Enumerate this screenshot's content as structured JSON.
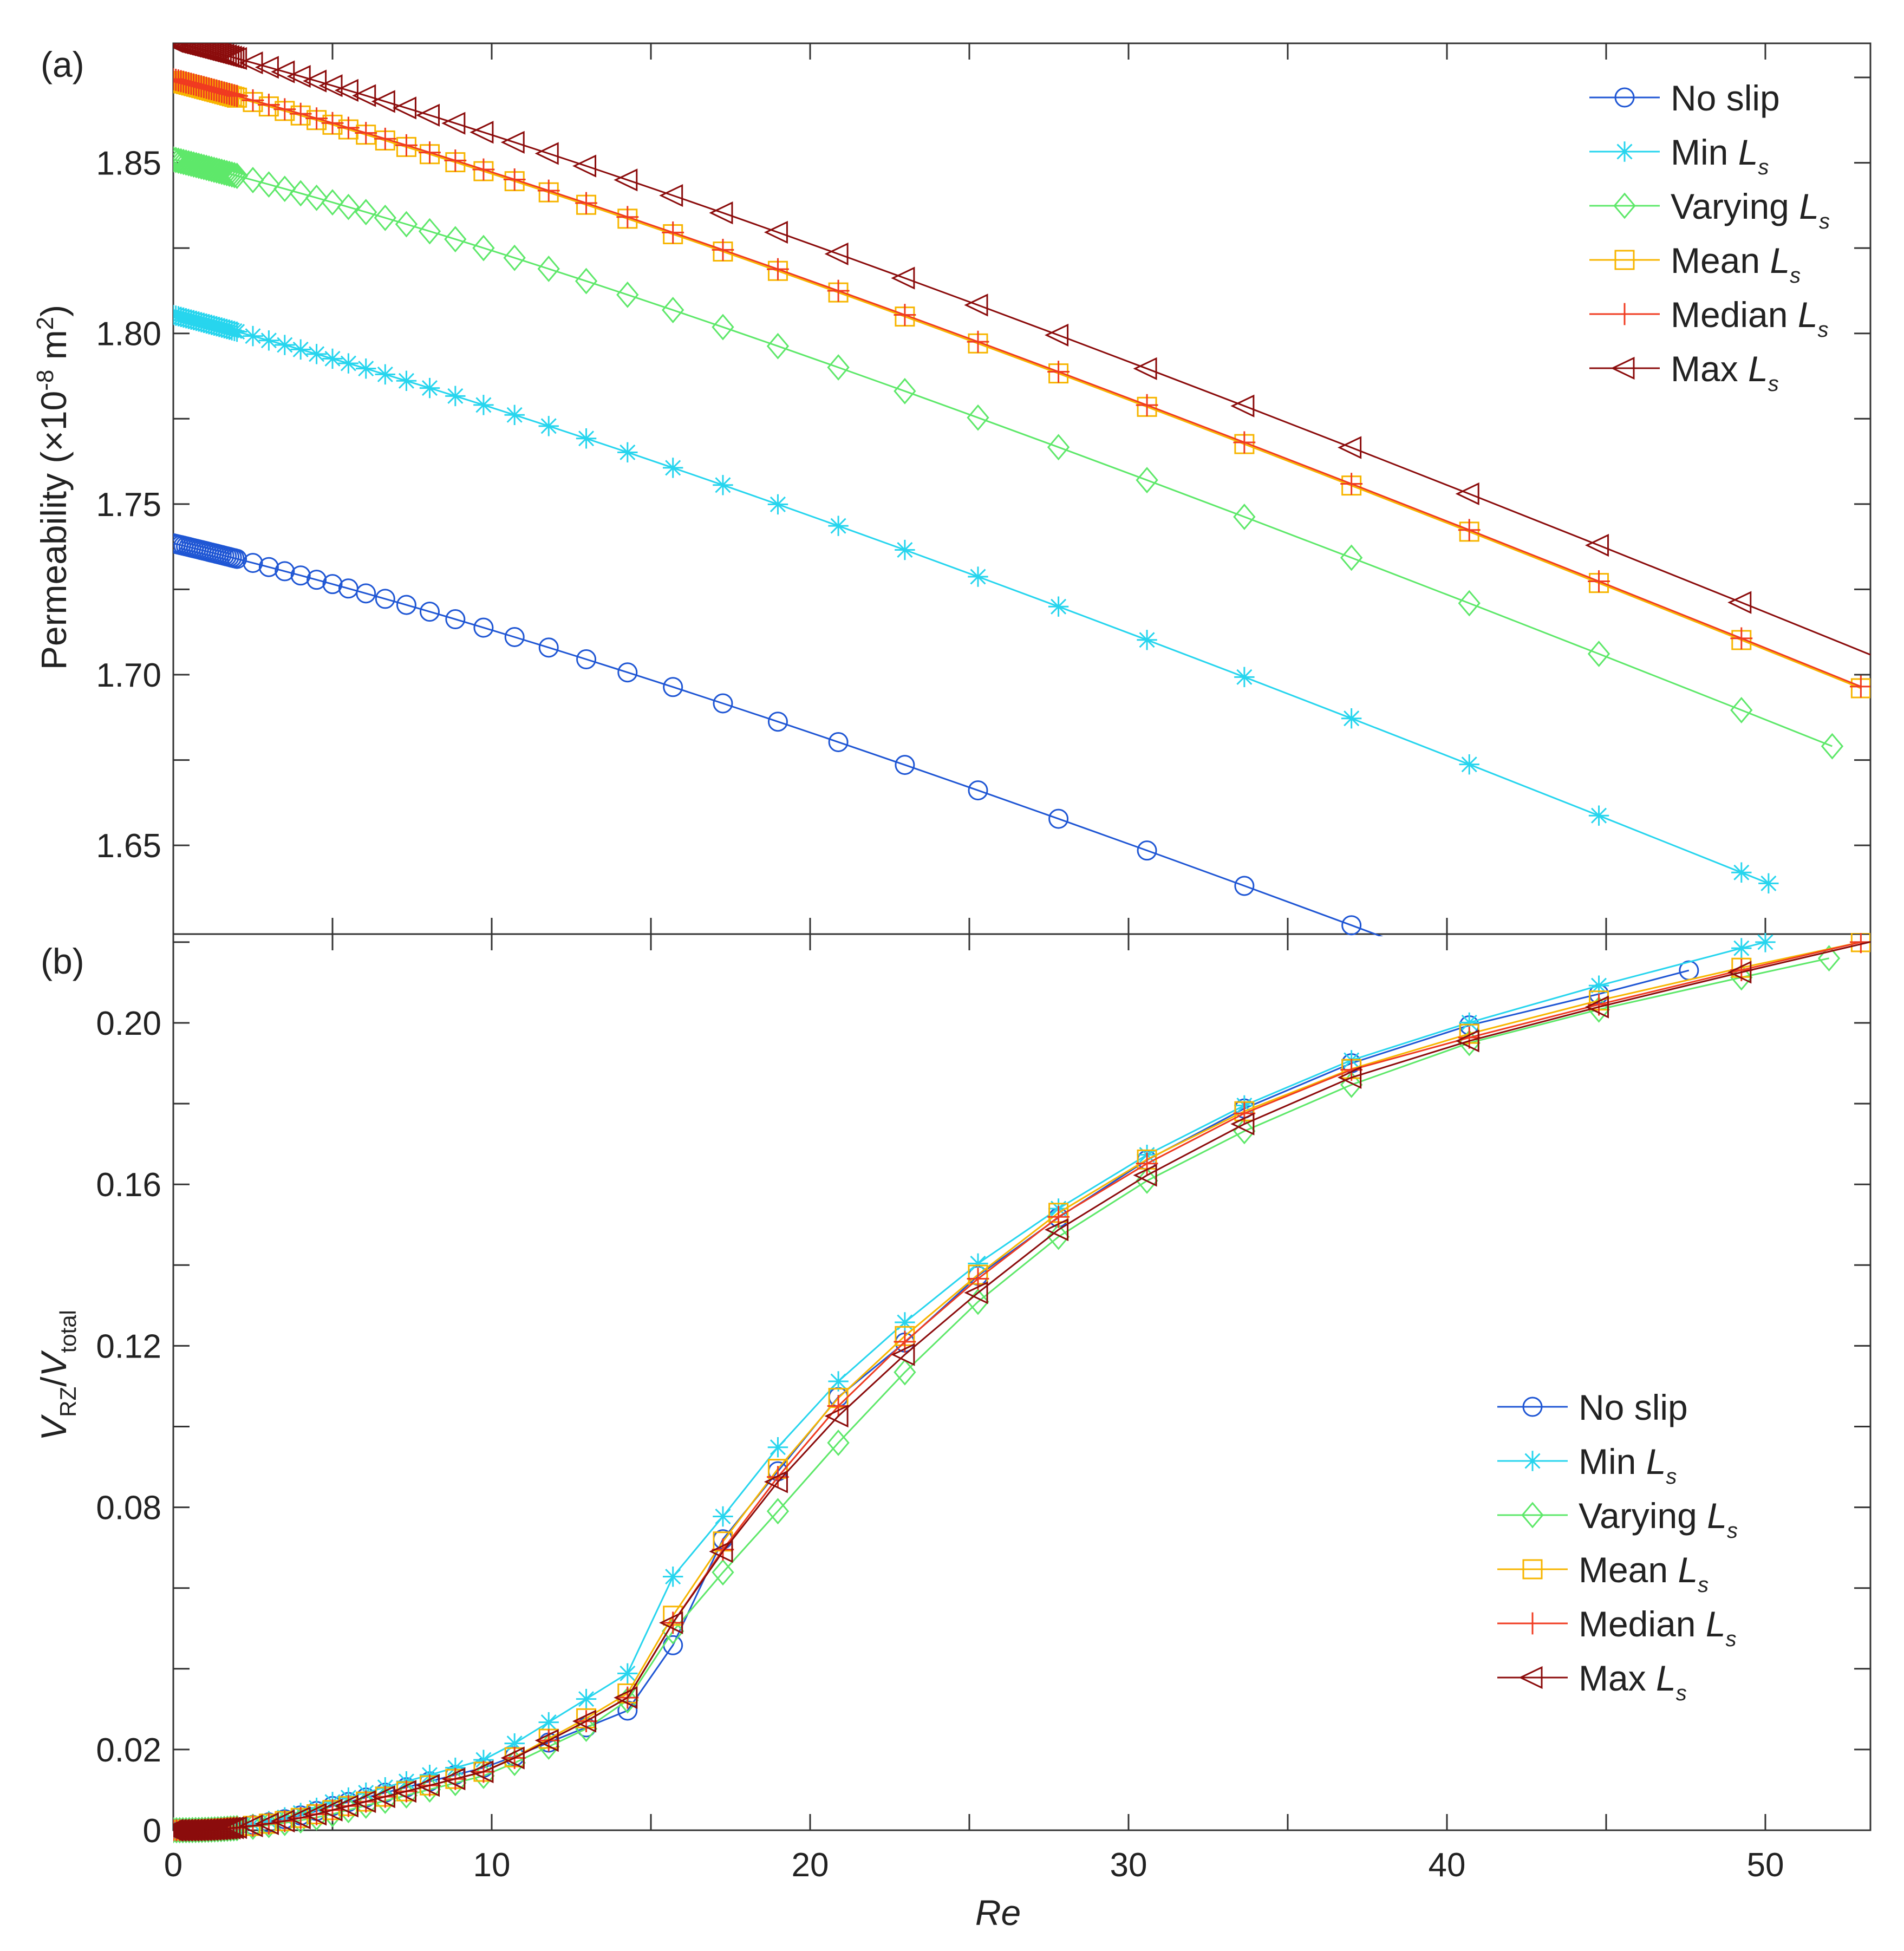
{
  "chart_data": [
    {
      "panel_label": "(a)",
      "type": "line",
      "ylabel": "Permeability (×10⁻⁸ m²)",
      "ylabel_main": "Permeability (×10",
      "ylabel_exp": "-8",
      "ylabel_unit": " m",
      "ylabel_unit_sup": "2",
      "ylabel_close": ")",
      "xlim": [
        0,
        53.3
      ],
      "ylim": [
        1.624,
        1.885
      ],
      "yticks": [
        1.65,
        1.7,
        1.75,
        1.8,
        1.85
      ],
      "yticklabels": [
        "1.65",
        "1.70",
        "1.75",
        "1.80",
        "1.85"
      ],
      "legend": "top-right",
      "series": [
        {
          "name": "No slip",
          "ls": "L",
          "color": "#1f56d4",
          "marker": "circle",
          "c": 1.7385,
          "k": 0.0022,
          "kappa": 0.00143,
          "xmax": 47.6
        },
        {
          "name": "Min",
          "ls": "L",
          "color": "#27d5ee",
          "marker": "asterisk",
          "c": 1.8054,
          "k": 0.00237,
          "kappa": 0.00143,
          "xmax": 50.1
        },
        {
          "name": "Varying",
          "ls": "L",
          "color": "#5ee86a",
          "marker": "diamond",
          "c": 1.851,
          "k": 0.00233,
          "kappa": 0.00143,
          "xmax": 52.1
        },
        {
          "name": "Mean",
          "ls": "L",
          "color": "#f7b500",
          "marker": "square",
          "c": 1.874,
          "k": 0.00238,
          "kappa": 0.00143,
          "xmax": 53.0
        },
        {
          "name": "Median",
          "ls": "L",
          "color": "#f03b20",
          "marker": "plus",
          "c": 1.8745,
          "k": 0.00238,
          "kappa": 0.00143,
          "xmax": 53.0
        },
        {
          "name": "Max",
          "ls": "L",
          "color": "#8b0c0c",
          "marker": "triangle-left",
          "c": 1.8855,
          "k": 0.00239,
          "kappa": 0.00143,
          "xmax": 53.8
        }
      ]
    },
    {
      "panel_label": "(b)",
      "type": "line",
      "ylabel_v1": "V",
      "ylabel_sub1": "RZ",
      "ylabel_slash": "/",
      "ylabel_v2": "V",
      "ylabel_sub2": "total",
      "xlabel": "Re",
      "xlim": [
        0,
        53.3
      ],
      "ylim": [
        0,
        0.222
      ],
      "xticks": [
        0,
        10,
        20,
        30,
        40,
        50
      ],
      "xticklabels": [
        "0",
        "10",
        "20",
        "30",
        "40",
        "50"
      ],
      "ytick_positions": [
        0,
        0.02,
        0.08,
        0.12,
        0.16,
        0.2
      ],
      "yticklabels": [
        "0",
        "0.02",
        "0.08",
        "0.12",
        "0.16",
        "0.20"
      ],
      "legend": "center-right",
      "series": [
        {
          "name": "No slip",
          "ls": "L",
          "color": "#1f56d4",
          "marker": "circle",
          "xs": [
            0,
            5,
            10,
            15,
            16.6,
            17.5,
            18.5,
            19,
            20,
            22,
            24,
            25,
            26,
            28,
            28.5,
            30,
            32,
            32.5,
            34,
            36,
            37,
            38,
            40,
            42,
            44,
            46,
            47.6
          ],
          "ys": [
            0,
            0.006,
            0.016,
            0.032,
            0.064,
            0.075,
            0.086,
            0.089,
            0.102,
            0.114,
            0.128,
            0.136,
            0.141,
            0.153,
            0.157,
            0.164,
            0.171,
            0.175,
            0.18,
            0.187,
            0.19,
            0.193,
            0.198,
            0.202,
            0.206,
            0.209,
            0.213
          ]
        },
        {
          "name": "Min",
          "ls": "L",
          "color": "#27d5ee",
          "marker": "asterisk",
          "xs": [
            0,
            5,
            10,
            14.5,
            15.5,
            17.5,
            20,
            23,
            26,
            30,
            34,
            38,
            42,
            46,
            50
          ],
          "ys": [
            0,
            0.007,
            0.018,
            0.04,
            0.061,
            0.08,
            0.105,
            0.126,
            0.145,
            0.165,
            0.181,
            0.194,
            0.203,
            0.212,
            0.22
          ]
        },
        {
          "name": "Varying",
          "ls": "L",
          "color": "#5ee86a",
          "marker": "diamond",
          "xs": [
            0,
            5,
            10,
            14,
            16,
            18.2,
            21,
            24,
            27,
            31,
            35.4,
            40.2,
            45.6,
            52
          ],
          "ys": [
            0,
            0.004,
            0.014,
            0.029,
            0.053,
            0.072,
            0.097,
            0.122,
            0.143,
            0.163,
            0.18,
            0.194,
            0.205,
            0.216
          ]
        },
        {
          "name": "Mean",
          "ls": "L",
          "color": "#f7b500",
          "marker": "square",
          "xs": [
            0,
            5,
            10,
            14.2,
            16.2,
            18.5,
            21.2,
            24.2,
            27.6,
            31.6,
            35.9,
            41,
            46.5,
            53
          ],
          "ys": [
            0,
            0.005,
            0.015,
            0.033,
            0.06,
            0.085,
            0.11,
            0.131,
            0.152,
            0.171,
            0.186,
            0.198,
            0.209,
            0.22
          ]
        },
        {
          "name": "Median",
          "ls": "L",
          "color": "#f03b20",
          "marker": "plus",
          "xs": [
            0,
            5,
            10,
            14.2,
            16.2,
            18.5,
            21.2,
            24.2,
            27.6,
            31.6,
            35.9,
            41,
            46.5,
            53
          ],
          "ys": [
            0,
            0.005,
            0.015,
            0.032,
            0.058,
            0.083,
            0.108,
            0.13,
            0.151,
            0.17,
            0.186,
            0.197,
            0.208,
            0.22
          ]
        },
        {
          "name": "Max",
          "ls": "L",
          "color": "#8b0c0c",
          "marker": "triangle-left",
          "xs": [
            0,
            5,
            10,
            14.2,
            16.2,
            18.6,
            21.4,
            24.6,
            28,
            32,
            36.4,
            41.3,
            46.8,
            53.8
          ],
          "ys": [
            0,
            0.005,
            0.015,
            0.032,
            0.058,
            0.083,
            0.107,
            0.129,
            0.15,
            0.169,
            0.185,
            0.197,
            0.208,
            0.221
          ]
        }
      ]
    }
  ]
}
